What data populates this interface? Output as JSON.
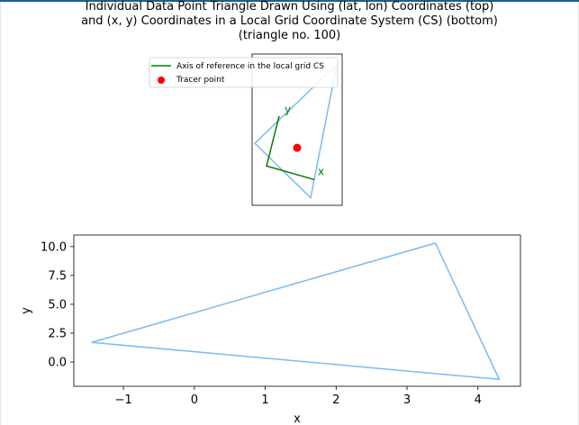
{
  "figure": {
    "title": "Individual Data Point Triangle Drawn Using (lat, lon) Coordinates (top)\nand (x, y) Coordinates in a Local Grid Coordinate System (CS) (bottom)\n(triangle no. 100)",
    "colors": {
      "triangle": "#7abaf2",
      "axis_ref": "#007f00",
      "tracer": "#ff0000",
      "frame": "#000000"
    }
  },
  "chart_data": [
    {
      "type": "line",
      "name": "top",
      "triangle": [
        [
          0.94,
          0.93
        ],
        [
          0.65,
          0.05
        ],
        [
          0.03,
          0.41
        ]
      ],
      "axis_reference": [
        [
          0.3,
          0.59
        ],
        [
          0.16,
          0.26
        ],
        [
          0.69,
          0.17
        ]
      ],
      "axis_letters": {
        "x": "x",
        "y": "y"
      },
      "axis_letter_positions": {
        "x": [
          0.73,
          0.2
        ],
        "y": [
          0.36,
          0.61
        ]
      },
      "tracer_point": [
        0.5,
        0.38
      ],
      "xlim": [
        0,
        1
      ],
      "ylim": [
        0,
        1
      ],
      "legend": {
        "position": "upper-left-outside",
        "entries": [
          {
            "label": "Axis of reference in the local grid CS",
            "marker": "line",
            "color": "#007f00"
          },
          {
            "label": "Tracer point",
            "marker": "dot",
            "color": "#ff0000"
          }
        ]
      },
      "show_ticks": false
    },
    {
      "type": "line",
      "name": "bottom",
      "x": [
        3.4,
        4.3,
        -1.45,
        3.4
      ],
      "y": [
        10.3,
        -1.5,
        1.7,
        10.3
      ],
      "xlim": [
        -1.7,
        4.6
      ],
      "ylim": [
        -2.1,
        11.0
      ],
      "xticks": [
        -1,
        0,
        1,
        2,
        3,
        4
      ],
      "xtick_labels": [
        "−1",
        "0",
        "1",
        "2",
        "3",
        "4"
      ],
      "yticks": [
        0.0,
        2.5,
        5.0,
        7.5,
        10.0
      ],
      "ytick_labels": [
        "0.0",
        "2.5",
        "5.0",
        "7.5",
        "10.0"
      ],
      "xlabel": "x",
      "ylabel": "y",
      "grid": false
    }
  ]
}
